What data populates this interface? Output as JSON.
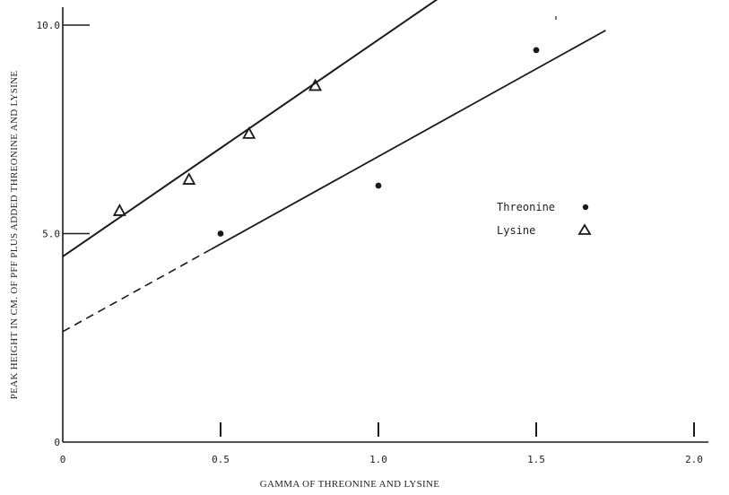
{
  "chart_data": {
    "type": "scatter",
    "xlabel": "GAMMA OF THREONINE AND LYSINE",
    "ylabel": "PEAK HEIGHT IN CM. OF PFF PLUS ADDED THREONINE AND LYSINE",
    "xlim": [
      0,
      2.1
    ],
    "ylim": [
      0,
      10.5
    ],
    "x_ticks": [
      {
        "value": 0,
        "label": "0"
      },
      {
        "value": 0.5,
        "label": "0.5"
      },
      {
        "value": 1.0,
        "label": "1.0"
      },
      {
        "value": 1.5,
        "label": "1.5"
      },
      {
        "value": 2.0,
        "label": "2.0"
      }
    ],
    "y_ticks": [
      {
        "value": 0,
        "label": "0"
      },
      {
        "value": 5.0,
        "label": "5.0"
      },
      {
        "value": 10.0,
        "label": "10.0"
      }
    ],
    "series": [
      {
        "name": "Threonine",
        "marker": "filled-circle",
        "points": [
          {
            "x": 0.5,
            "y": 5.0
          },
          {
            "x": 1.0,
            "y": 6.15
          },
          {
            "x": 1.5,
            "y": 9.4
          }
        ],
        "fit_line": {
          "intercept": 2.65,
          "slope": 4.2,
          "dashed_until_x": 0.47,
          "x_end": 1.72
        }
      },
      {
        "name": "Lysine",
        "marker": "open-triangle",
        "points": [
          {
            "x": 0.18,
            "y": 5.55
          },
          {
            "x": 0.4,
            "y": 6.3
          },
          {
            "x": 0.59,
            "y": 7.4
          },
          {
            "x": 0.8,
            "y": 8.55
          }
        ],
        "fit_line": {
          "intercept": 4.45,
          "slope": 5.2,
          "x_end": 1.19
        }
      }
    ],
    "legend": {
      "position": "right-middle"
    },
    "grid": false,
    "colors": {
      "ink": "#1a1a1a",
      "background": "#ffffff"
    }
  }
}
